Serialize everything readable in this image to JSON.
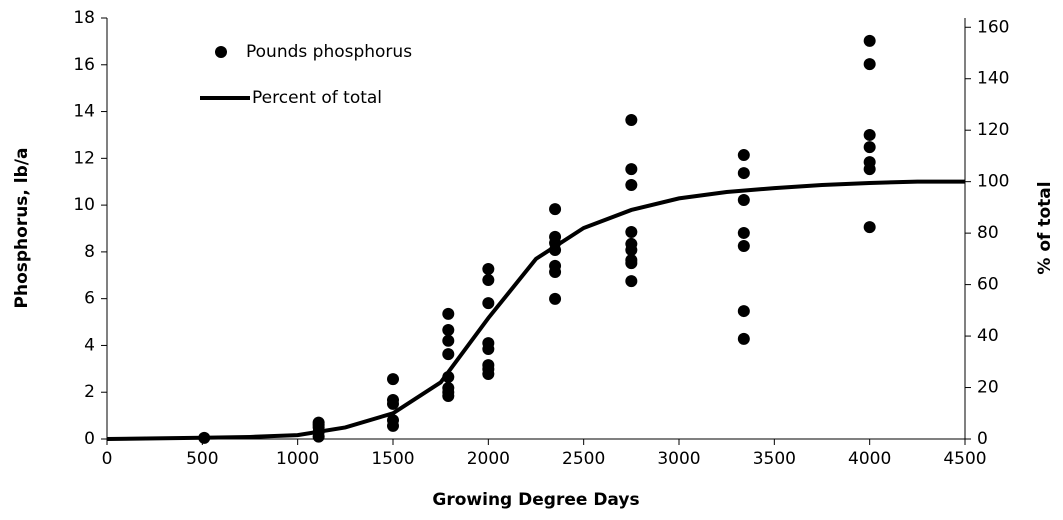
{
  "chart_data": {
    "type": "scatter",
    "xlabel": "Growing Degree Days",
    "ylabel": "Phosphorus, lb/a",
    "y2label": "% of total",
    "xlim": [
      0,
      4500
    ],
    "xticks": [
      0,
      500,
      1000,
      1500,
      2000,
      2500,
      3000,
      3500,
      4000,
      4500
    ],
    "ylim": [
      0,
      18
    ],
    "yticks": [
      0,
      2,
      4,
      6,
      8,
      10,
      12,
      14,
      16,
      18
    ],
    "y2lim": [
      0,
      163.6
    ],
    "y2ticks": [
      0,
      20,
      40,
      60,
      80,
      100,
      120,
      140,
      160
    ],
    "legend": "upper left",
    "series": [
      {
        "name": "Pounds phosphorus",
        "color": "#000000",
        "kind": "scatter",
        "x": [
          510,
          1110,
          1110,
          1110,
          1110,
          1110,
          1500,
          1500,
          1500,
          1500,
          1500,
          1790,
          1790,
          1790,
          1790,
          1790,
          1790,
          1790,
          1790,
          2000,
          2000,
          2000,
          2000,
          2000,
          2000,
          2000,
          2000,
          2350,
          2350,
          2350,
          2350,
          2350,
          2350,
          2350,
          2750,
          2750,
          2750,
          2750,
          2750,
          2750,
          2750,
          2750,
          2750,
          3340,
          3340,
          3340,
          3340,
          3340,
          3340,
          3340,
          4000,
          4000,
          4000,
          4000,
          4000,
          4000,
          4000
        ],
        "values": [
          0.05,
          0.7,
          0.5,
          0.3,
          0.1,
          0.6,
          2.56,
          1.67,
          1.5,
          0.8,
          0.56,
          5.35,
          4.66,
          4.2,
          3.63,
          2.65,
          2.18,
          2.0,
          1.84,
          7.27,
          6.8,
          5.81,
          4.1,
          3.85,
          2.99,
          2.78,
          3.16,
          9.83,
          8.64,
          8.38,
          8.08,
          7.4,
          7.14,
          5.99,
          13.64,
          11.54,
          10.86,
          8.85,
          8.34,
          8.08,
          7.65,
          7.52,
          6.75,
          12.14,
          11.37,
          10.22,
          8.81,
          8.25,
          5.47,
          4.28,
          17.02,
          16.03,
          13.0,
          12.48,
          11.84,
          11.54,
          9.06
        ]
      },
      {
        "name": "Percent of total",
        "color": "#000000",
        "kind": "line",
        "axis": "y2",
        "x": [
          0,
          500,
          750,
          1000,
          1250,
          1500,
          1750,
          2000,
          2250,
          2500,
          2750,
          3000,
          3250,
          3500,
          3750,
          4000,
          4250,
          4500
        ],
        "values": [
          0,
          0.5,
          0.8,
          1.5,
          4.5,
          10,
          22,
          47,
          70,
          82,
          89,
          93.5,
          96,
          97.5,
          98.7,
          99.5,
          100,
          100
        ]
      }
    ]
  }
}
